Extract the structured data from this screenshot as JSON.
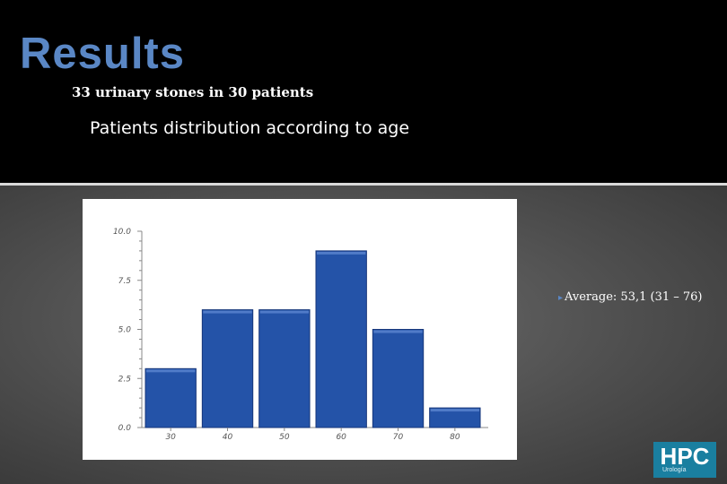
{
  "slide": {
    "title": "Results",
    "subtitle": "33 urinary stones in 30 patients",
    "section_heading": "Patients distribution according to age",
    "note": "Average: 53,1 (31 – 76)"
  },
  "logo": {
    "text": "HPC",
    "subtext": "Urología"
  },
  "colors": {
    "title": "#5a87c5",
    "bar": "#2453a8",
    "logo_bg": "#1a7fa0"
  },
  "chart_data": {
    "type": "bar",
    "categories": [
      "30",
      "40",
      "50",
      "60",
      "70",
      "80"
    ],
    "values": [
      3,
      6,
      6,
      9,
      5,
      1
    ],
    "ylim": [
      0,
      10
    ],
    "yticks": [
      "0.0",
      "2.5",
      "5.0",
      "7.5",
      "10.0"
    ],
    "ytick_values": [
      0,
      2.5,
      5,
      7.5,
      10
    ],
    "title": "",
    "xlabel": "",
    "ylabel": "",
    "grid": false,
    "legend": "none"
  }
}
